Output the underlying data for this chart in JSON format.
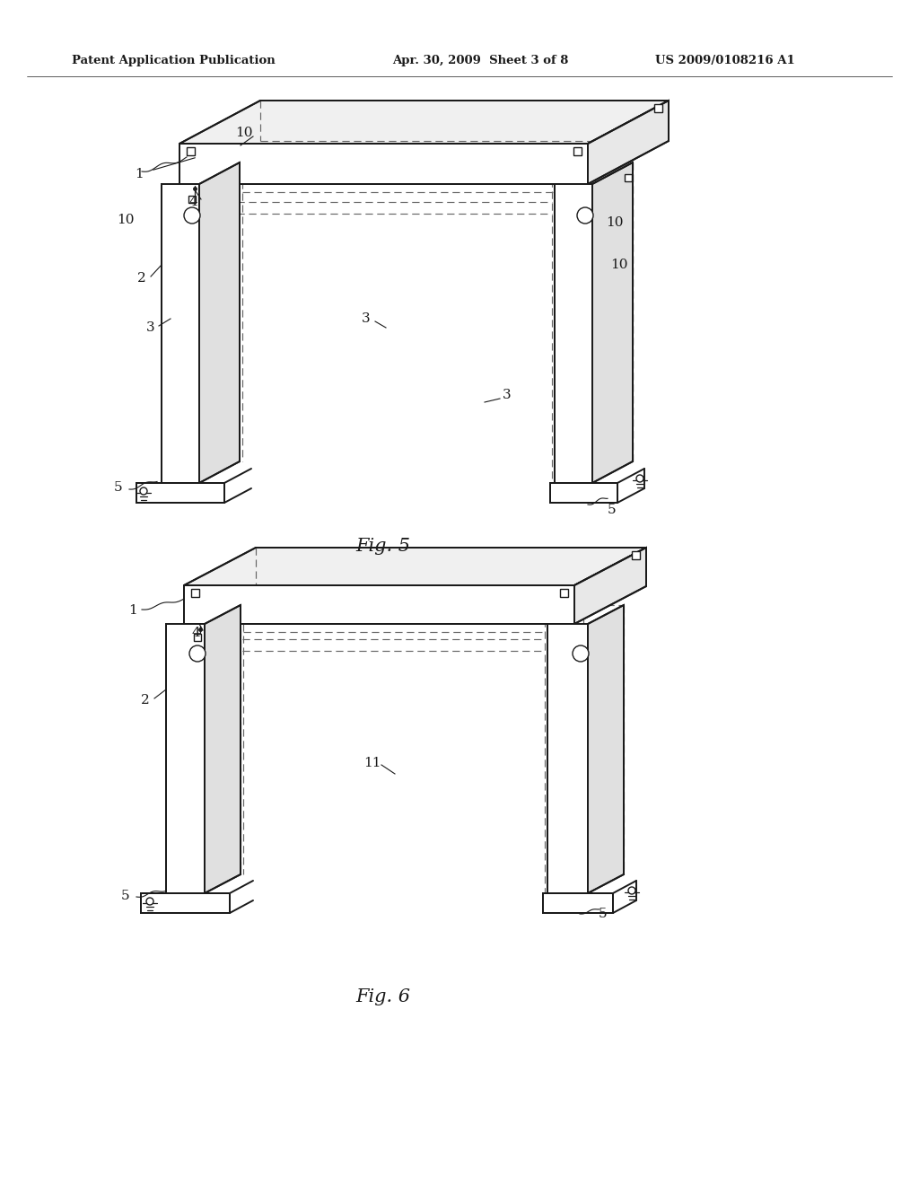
{
  "background_color": "#ffffff",
  "page_width": 10.24,
  "page_height": 13.2,
  "header": {
    "left": "Patent Application Publication",
    "center": "Apr. 30, 2009  Sheet 3 of 8",
    "right": "US 2009/0108216 A1"
  },
  "line_color": "#1a1a1a",
  "dashed_color": "#666666",
  "lw_main": 1.4,
  "lw_dashed": 0.85,
  "lw_thin": 0.7
}
